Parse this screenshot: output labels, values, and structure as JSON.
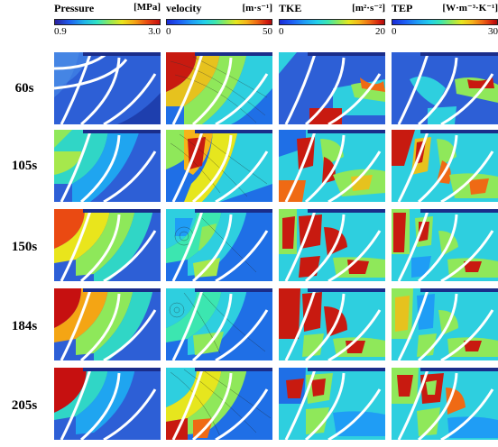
{
  "columns": [
    {
      "name": "Pressure",
      "unit": "[MPa]",
      "min": "0.9",
      "max": "3.0",
      "colorbar": "pressure"
    },
    {
      "name": "velocity",
      "unit": "[m·s⁻¹]",
      "min": "0",
      "max": "50",
      "colorbar": "jet"
    },
    {
      "name": "TKE",
      "unit": "[m²·s⁻²]",
      "min": "0",
      "max": "20",
      "colorbar": "jet"
    },
    {
      "name": "TEP",
      "unit": "[W·m⁻³·K⁻¹]",
      "min": "0",
      "max": "30",
      "colorbar": "jet"
    }
  ],
  "rows": [
    "60s",
    "105s",
    "150s",
    "184s",
    "205s"
  ],
  "colors": {
    "blade": "#ffffff",
    "navy": "#1a2d8a",
    "background": "#ffffff"
  }
}
